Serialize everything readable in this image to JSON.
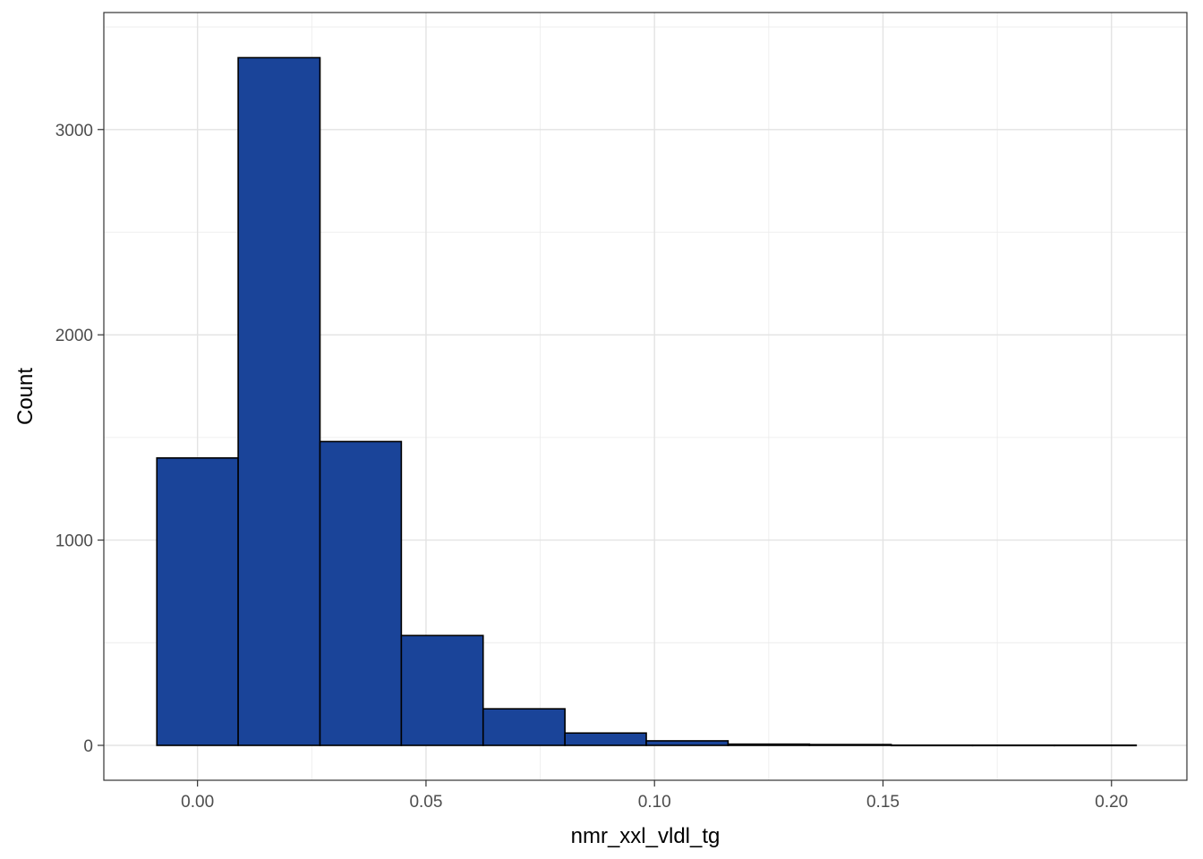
{
  "chart_data": {
    "type": "histogram",
    "title": "",
    "xlabel": "nmr_xxl_vldl_tg",
    "ylabel": "Count",
    "xlim": [
      -0.0205,
      0.2165
    ],
    "ylim": [
      -170,
      3570
    ],
    "x_ticks": [
      0.0,
      0.05,
      0.1,
      0.15,
      0.2
    ],
    "x_tick_labels": [
      "0.00",
      "0.05",
      "0.10",
      "0.15",
      "0.20"
    ],
    "y_ticks": [
      0,
      1000,
      2000,
      3000
    ],
    "y_tick_labels": [
      "0",
      "1000",
      "2000",
      "3000"
    ],
    "grid": true,
    "bar_fill": "#1a4499",
    "bar_stroke": "#000000",
    "bins": [
      {
        "x0": -0.0089,
        "x1": 0.0089,
        "count": 1400
      },
      {
        "x0": 0.0089,
        "x1": 0.0268,
        "count": 3350
      },
      {
        "x0": 0.0268,
        "x1": 0.0446,
        "count": 1480
      },
      {
        "x0": 0.0446,
        "x1": 0.0625,
        "count": 535
      },
      {
        "x0": 0.0625,
        "x1": 0.0804,
        "count": 178
      },
      {
        "x0": 0.0804,
        "x1": 0.0982,
        "count": 60
      },
      {
        "x0": 0.0982,
        "x1": 0.1161,
        "count": 22
      },
      {
        "x0": 0.1161,
        "x1": 0.1339,
        "count": 6
      },
      {
        "x0": 0.1339,
        "x1": 0.1518,
        "count": 4
      },
      {
        "x0": 0.1518,
        "x1": 0.1696,
        "count": 1
      },
      {
        "x0": 0.1696,
        "x1": 0.1875,
        "count": 1
      },
      {
        "x0": 0.1875,
        "x1": 0.2054,
        "count": 1
      }
    ]
  }
}
